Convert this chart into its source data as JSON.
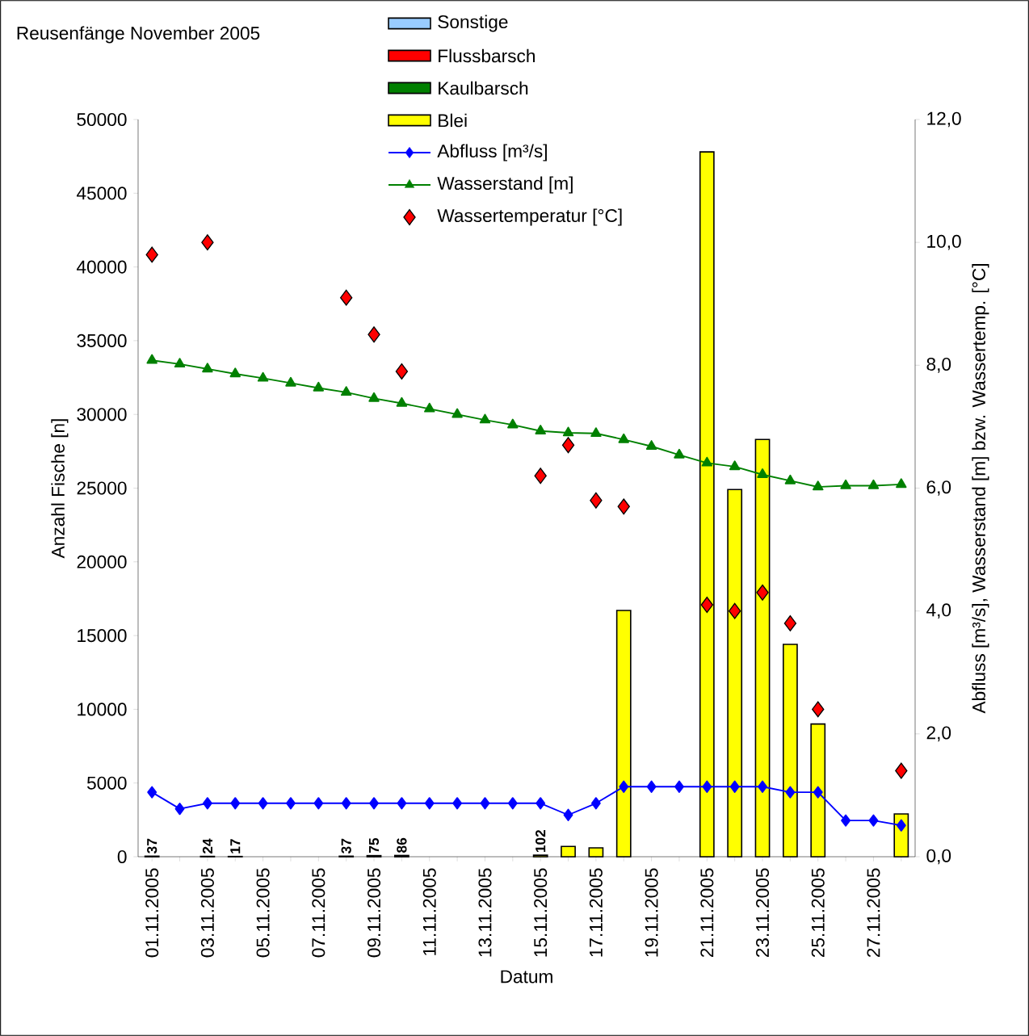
{
  "chart_data": {
    "type": "bar",
    "title": "Reusenfänge November 2005",
    "xlabel": "Datum",
    "ylabel": "Anzahl Fische [n]",
    "y2label": "Abfluss [m³/s], Wasserstand [m] bzw. Wassertemp. [°C]",
    "categories": [
      "01.11.2005",
      null,
      "03.11.2005",
      null,
      "05.11.2005",
      null,
      "07.11.2005",
      null,
      "09.11.2005",
      null,
      "11.11.2005",
      null,
      "13.11.2005",
      null,
      "15.11.2005",
      null,
      "17.11.2005",
      null,
      "19.11.2005",
      null,
      "21.11.2005",
      null,
      "23.11.2005",
      null,
      "25.11.2005",
      null,
      "27.11.2005",
      null
    ],
    "series": [
      {
        "name": "Blei",
        "color": "#ffff00",
        "values": [
          37,
          null,
          24,
          17,
          null,
          null,
          null,
          37,
          75,
          86,
          null,
          null,
          null,
          null,
          102,
          700,
          600,
          16700,
          null,
          null,
          47800,
          24900,
          28300,
          14400,
          9000,
          null,
          null,
          2900
        ]
      },
      {
        "name": "Kaulbarsch",
        "color": "#008000",
        "values": [
          null,
          null,
          null,
          null,
          null,
          null,
          null,
          null,
          null,
          null,
          null,
          null,
          null,
          null,
          null,
          null,
          null,
          null,
          null,
          null,
          null,
          null,
          null,
          null,
          null,
          null,
          null,
          null
        ]
      },
      {
        "name": "Flussbarsch",
        "color": "#ff0000",
        "values": [
          null,
          null,
          null,
          null,
          null,
          null,
          null,
          null,
          null,
          null,
          null,
          null,
          null,
          null,
          null,
          null,
          null,
          null,
          null,
          null,
          null,
          null,
          null,
          null,
          null,
          null,
          null,
          null
        ]
      },
      {
        "name": "Sonstige",
        "color": "#99ccff",
        "values": [
          null,
          null,
          null,
          null,
          null,
          null,
          null,
          null,
          null,
          null,
          null,
          null,
          null,
          null,
          null,
          null,
          null,
          null,
          null,
          null,
          null,
          null,
          null,
          null,
          null,
          null,
          null,
          null
        ]
      },
      {
        "name": "Abfluss [m³/s]",
        "type": "line",
        "axis": "y2",
        "color": "#0000ff",
        "marker": "diamond",
        "line_style": "solid",
        "values": [
          1.05,
          0.78,
          0.87,
          0.87,
          0.87,
          0.87,
          0.87,
          0.87,
          0.87,
          0.87,
          0.87,
          0.87,
          0.87,
          0.87,
          0.87,
          0.68,
          0.87,
          1.14,
          1.14,
          1.14,
          1.14,
          1.14,
          1.14,
          1.05,
          1.05,
          0.59,
          0.59,
          0.51
        ]
      },
      {
        "name": "Wasserstand [m]",
        "type": "line",
        "axis": "y2",
        "color": "#008000",
        "marker": "triangle",
        "line_style": "solid",
        "values": [
          8.08,
          8.02,
          7.94,
          7.86,
          7.79,
          7.71,
          7.63,
          7.56,
          7.46,
          7.38,
          7.29,
          7.2,
          7.11,
          7.03,
          6.93,
          6.9,
          6.89,
          6.79,
          6.68,
          6.54,
          6.41,
          6.35,
          6.22,
          6.12,
          6.02,
          6.04,
          6.04,
          6.06
        ]
      },
      {
        "name": "Wassertemperatur [°C]",
        "type": "scatter",
        "axis": "y2",
        "color": "#ff0000",
        "marker": "diamond",
        "values": [
          9.8,
          null,
          10.0,
          null,
          null,
          null,
          null,
          9.1,
          8.5,
          7.9,
          null,
          null,
          null,
          null,
          6.2,
          6.7,
          5.8,
          5.7,
          null,
          null,
          4.1,
          4.0,
          4.3,
          3.8,
          2.4,
          null,
          null,
          1.4
        ]
      }
    ],
    "totals": [
      "37",
      null,
      "24",
      "17",
      null,
      null,
      null,
      "37",
      "75",
      "86",
      null,
      null,
      null,
      null,
      "102",
      null,
      null,
      null,
      null,
      null,
      null,
      null,
      null,
      null,
      null,
      null,
      null,
      null
    ],
    "ylim": [
      0,
      50000
    ],
    "yticks": [
      0,
      5000,
      10000,
      15000,
      20000,
      25000,
      30000,
      35000,
      40000,
      45000,
      50000
    ],
    "y2lim": [
      0,
      12
    ],
    "y2ticks": [
      {
        "value": 0,
        "label": "0,0"
      },
      {
        "value": 2,
        "label": "2,0"
      },
      {
        "value": 4,
        "label": "4,0"
      },
      {
        "value": 6,
        "label": "6,0"
      },
      {
        "value": 8,
        "label": "8,0"
      },
      {
        "value": 10,
        "label": "10,0"
      },
      {
        "value": 12,
        "label": "12,0"
      }
    ],
    "grid": false,
    "legend": "top"
  }
}
